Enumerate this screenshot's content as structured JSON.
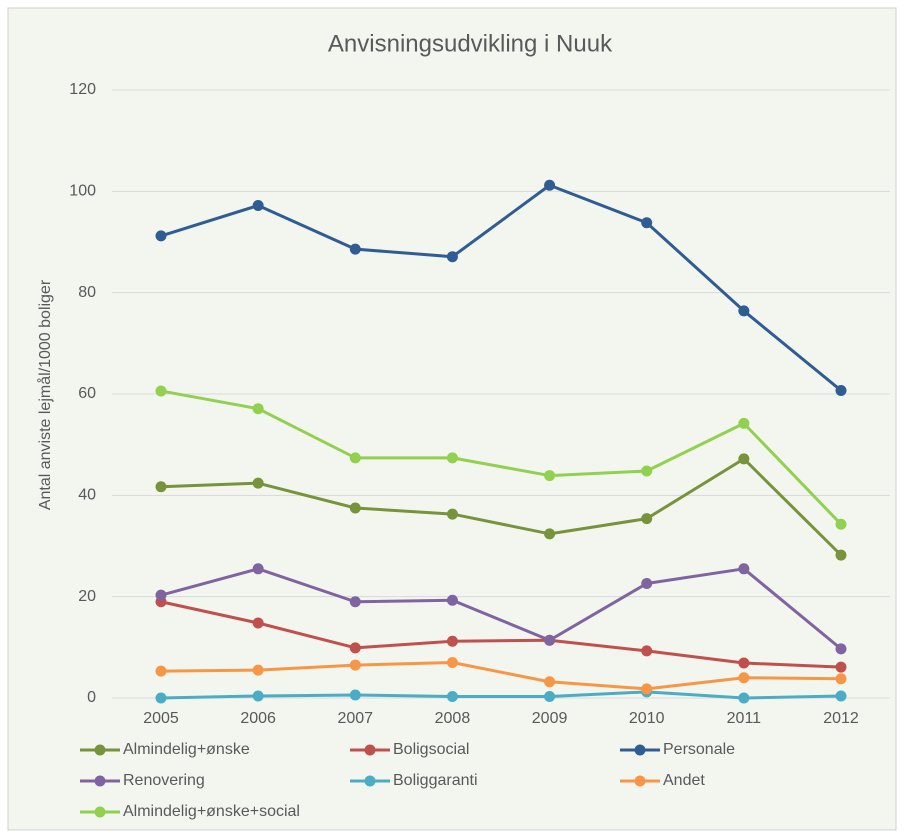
{
  "chart_data": {
    "type": "line",
    "title": "Anvisningsudvikling i Nuuk",
    "y_label": "Antal anviste lejmål/1000 boliger",
    "categories": [
      "2005",
      "2006",
      "2007",
      "2008",
      "2009",
      "2010",
      "2011",
      "2012"
    ],
    "ylim": [
      0,
      120
    ],
    "yticks": [
      0,
      20,
      40,
      60,
      80,
      100,
      120
    ],
    "grid": true,
    "series": [
      {
        "name": "Almindelig+ønske",
        "color": "#77933c",
        "values": [
          41.7,
          42.4,
          37.5,
          36.3,
          32.4,
          35.4,
          47.2,
          28.2
        ]
      },
      {
        "name": "Boligsocial",
        "color": "#c0504d",
        "values": [
          19.0,
          14.8,
          9.9,
          11.2,
          11.4,
          9.3,
          6.9,
          6.1
        ]
      },
      {
        "name": "Personale",
        "color": "#305c94",
        "values": [
          91.2,
          97.2,
          88.6,
          87.1,
          101.2,
          93.8,
          76.4,
          60.7
        ]
      },
      {
        "name": "Renovering",
        "color": "#8064a2",
        "values": [
          20.3,
          25.5,
          19.0,
          19.3,
          11.4,
          22.6,
          25.5,
          9.7
        ]
      },
      {
        "name": "Boliggaranti",
        "color": "#4bacc6",
        "values": [
          0,
          0.4,
          0.6,
          0.3,
          0.3,
          1.2,
          0,
          0.4
        ]
      },
      {
        "name": "Andet",
        "color": "#f79646",
        "values": [
          5.3,
          5.5,
          6.5,
          7.0,
          3.2,
          1.8,
          4.0,
          3.8
        ]
      },
      {
        "name": "Almindelig+ønske+social",
        "color": "#92d050",
        "values": [
          60.6,
          57.1,
          47.4,
          47.4,
          43.9,
          44.8,
          54.2,
          34.3
        ]
      }
    ]
  }
}
